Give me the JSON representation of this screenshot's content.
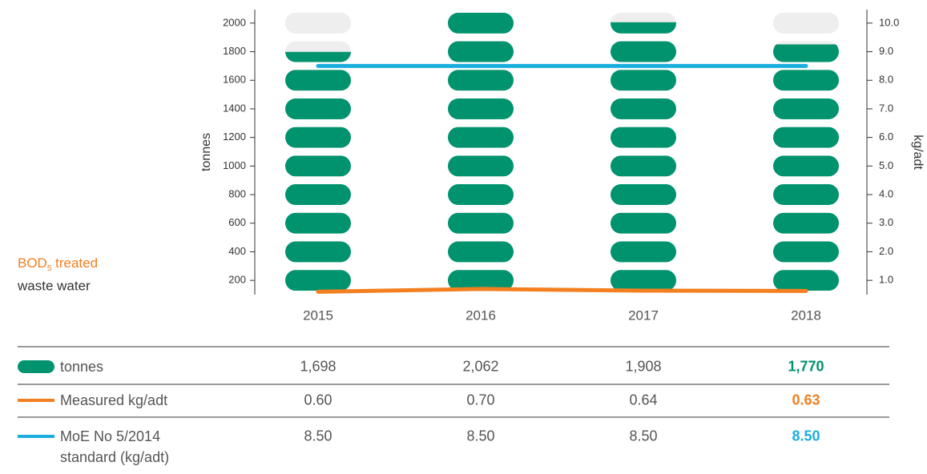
{
  "chart_data": {
    "type": "bar",
    "categories": [
      "2015",
      "2016",
      "2017",
      "2018"
    ],
    "ylabel": "tonnes",
    "y2label": "kg/adt",
    "annotation": {
      "main": "BOD",
      "sub": "5",
      "rest": " treated",
      "line2": "waste water",
      "color": "#f47f20"
    },
    "ylim": [
      100,
      2100
    ],
    "yticks": [
      200,
      400,
      600,
      800,
      1000,
      1200,
      1400,
      1600,
      1800,
      2000
    ],
    "y2lim": [
      0.5,
      10.5
    ],
    "y2ticks": [
      {
        "value": 1,
        "label": "1.0"
      },
      {
        "value": 2,
        "label": "2.0"
      },
      {
        "value": 3,
        "label": "3.0"
      },
      {
        "value": 4,
        "label": "4.0"
      },
      {
        "value": 5,
        "label": "5.0"
      },
      {
        "value": 6,
        "label": "6.0"
      },
      {
        "value": 7,
        "label": "7.0"
      },
      {
        "value": 8,
        "label": "8.0"
      },
      {
        "value": 9,
        "label": "9.0"
      },
      {
        "value": 10,
        "label": "10.0"
      }
    ],
    "pill_step": 200,
    "empty_color": "#eeeeee",
    "series": [
      {
        "name": "tonnes",
        "type": "bar",
        "color": "#00936e",
        "values": [
          1698,
          2062,
          1908,
          1770
        ],
        "value_labels": [
          "1,698",
          "2,062",
          "1,908",
          "1,770"
        ]
      },
      {
        "name": "Measured kg/adt",
        "type": "line",
        "axis": "y2",
        "color": "#f47f20",
        "values": [
          0.6,
          0.7,
          0.64,
          0.63
        ],
        "value_labels": [
          "0.60",
          "0.70",
          "0.64",
          "0.63"
        ]
      },
      {
        "name": "MoE  No 5/2014 standard (kg/adt)",
        "type": "line",
        "axis": "y2",
        "color": "#1aaede",
        "values": [
          8.5,
          8.5,
          8.5,
          8.5
        ],
        "value_labels": [
          "8.50",
          "8.50",
          "8.50",
          "8.50"
        ]
      }
    ]
  }
}
